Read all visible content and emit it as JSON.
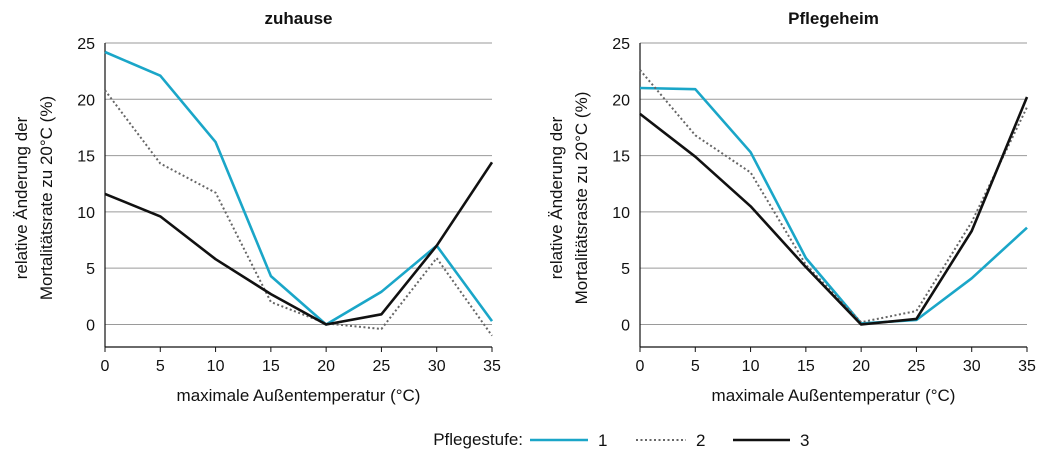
{
  "chart_data": [
    {
      "type": "line",
      "title": "zuhause",
      "xlabel": "maximale Außentemperatur (°C)",
      "ylabel": [
        "relative Änderung der",
        "Mortalitätsrate zu 20°C (%)"
      ],
      "x": [
        0,
        5,
        10,
        15,
        20,
        25,
        30,
        35
      ],
      "xlim": [
        0,
        35
      ],
      "ylim": [
        -2,
        25
      ],
      "xticks": [
        "0",
        "5",
        "10",
        "15",
        "20",
        "25",
        "30",
        "35"
      ],
      "yticks": [
        "0",
        "5",
        "10",
        "15",
        "20",
        "25"
      ],
      "grid": "horizontal",
      "series": [
        {
          "name": "1",
          "color": "#1aa6c8",
          "style": "solid",
          "values": [
            24.2,
            22.1,
            16.2,
            4.3,
            0.0,
            2.9,
            7.0,
            0.3
          ]
        },
        {
          "name": "2",
          "color": "#666666",
          "style": "dotted",
          "values": [
            20.8,
            14.3,
            11.7,
            2.0,
            0.1,
            -0.4,
            5.9,
            -1.0
          ]
        },
        {
          "name": "3",
          "color": "#111111",
          "style": "solid",
          "values": [
            11.6,
            9.6,
            5.8,
            2.7,
            0.0,
            0.9,
            7.0,
            14.4
          ]
        }
      ]
    },
    {
      "type": "line",
      "title": "Pflegeheim",
      "xlabel": "maximale Außentemperatur (°C)",
      "ylabel": [
        "relative Änderung der",
        "Mortalitätsraste zu 20°C (%)"
      ],
      "x": [
        0,
        5,
        10,
        15,
        20,
        25,
        30,
        35
      ],
      "xlim": [
        0,
        35
      ],
      "ylim": [
        -2,
        25
      ],
      "xticks": [
        "0",
        "5",
        "10",
        "15",
        "20",
        "25",
        "30",
        "35"
      ],
      "yticks": [
        "0",
        "5",
        "10",
        "15",
        "20",
        "25"
      ],
      "grid": "horizontal",
      "series": [
        {
          "name": "1",
          "color": "#1aa6c8",
          "style": "solid",
          "values": [
            21.0,
            20.9,
            15.3,
            5.9,
            0.1,
            0.4,
            4.1,
            8.6
          ]
        },
        {
          "name": "2",
          "color": "#666666",
          "style": "dotted",
          "values": [
            22.6,
            16.8,
            13.5,
            5.3,
            0.2,
            1.2,
            9.1,
            19.3
          ]
        },
        {
          "name": "3",
          "color": "#111111",
          "style": "solid",
          "values": [
            18.7,
            14.9,
            10.5,
            5.1,
            0.0,
            0.5,
            8.3,
            20.2
          ]
        }
      ]
    }
  ],
  "legend": {
    "title": "Pflegestufe:",
    "placement": "bottom-center",
    "items": [
      {
        "label": "1",
        "color": "#1aa6c8",
        "style": "solid"
      },
      {
        "label": "2",
        "color": "#666666",
        "style": "dotted"
      },
      {
        "label": "3",
        "color": "#111111",
        "style": "solid"
      }
    ]
  }
}
